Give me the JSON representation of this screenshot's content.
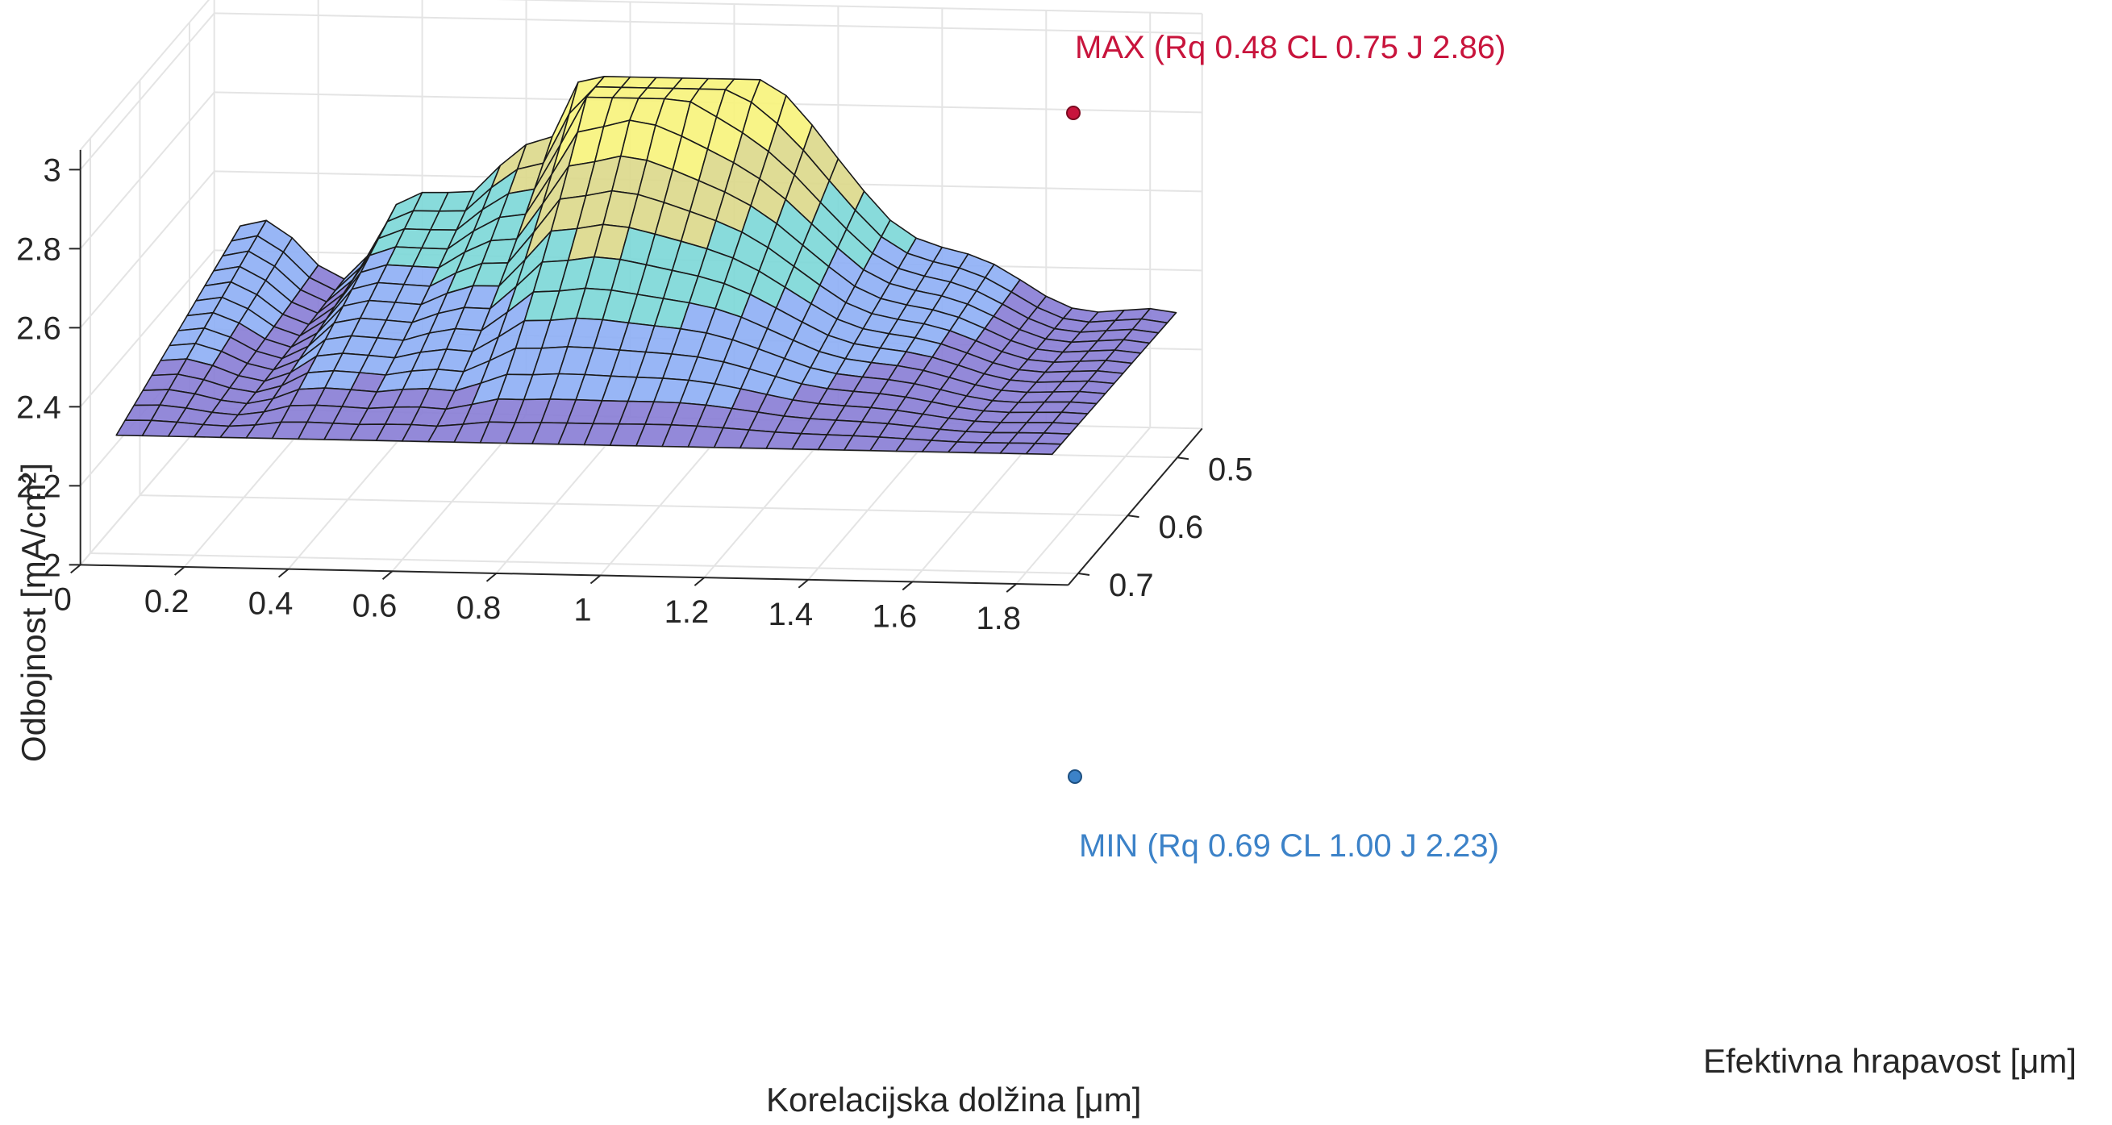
{
  "chart_data": {
    "type": "surface",
    "title": "",
    "xlabel": "Korelacijska dolžina [μm]",
    "ylabel": "Efektivna hrapavost [μm]",
    "zlabel": "Odbojnost [mA/cm²]",
    "x_ticks": [
      "0",
      "0.2",
      "0.4",
      "0.6",
      "0.8",
      "1",
      "1.2",
      "1.4",
      "1.6",
      "1.8"
    ],
    "x_tick_values": [
      0,
      0.2,
      0.4,
      0.6,
      0.8,
      1.0,
      1.2,
      1.4,
      1.6,
      1.8
    ],
    "y_ticks": [
      "0.5",
      "0.6",
      "0.7"
    ],
    "y_tick_values": [
      0.5,
      0.6,
      0.7
    ],
    "z_ticks": [
      "2",
      "2.2",
      "2.4",
      "2.6",
      "2.8",
      "3"
    ],
    "z_tick_values": [
      2.0,
      2.2,
      2.4,
      2.6,
      2.8,
      3.0
    ],
    "xlim": [
      0,
      1.9
    ],
    "ylim": [
      0.45,
      0.72
    ],
    "zlim": [
      2.0,
      3.05
    ],
    "grid": true,
    "colormap": [
      "#8a7fd6",
      "#8fb0f5",
      "#7ed8d8",
      "#dcd98c",
      "#f7f37d"
    ],
    "annotations": [
      {
        "label": "MAX (Rq 0.48 CL 0.75 J 2.86)",
        "Rq": 0.48,
        "CL": 0.75,
        "J": 2.86,
        "color": "#c8143c"
      },
      {
        "label": "MIN (Rq 0.69 CL 1.00 J 2.23)",
        "Rq": 0.69,
        "CL": 1.0,
        "J": 2.23,
        "color": "#3c82c8"
      }
    ],
    "surface_summary": {
      "x_range": [
        0.05,
        1.85
      ],
      "y_range": [
        0.45,
        0.7
      ],
      "z_min": 2.23,
      "z_max": 2.86
    }
  }
}
